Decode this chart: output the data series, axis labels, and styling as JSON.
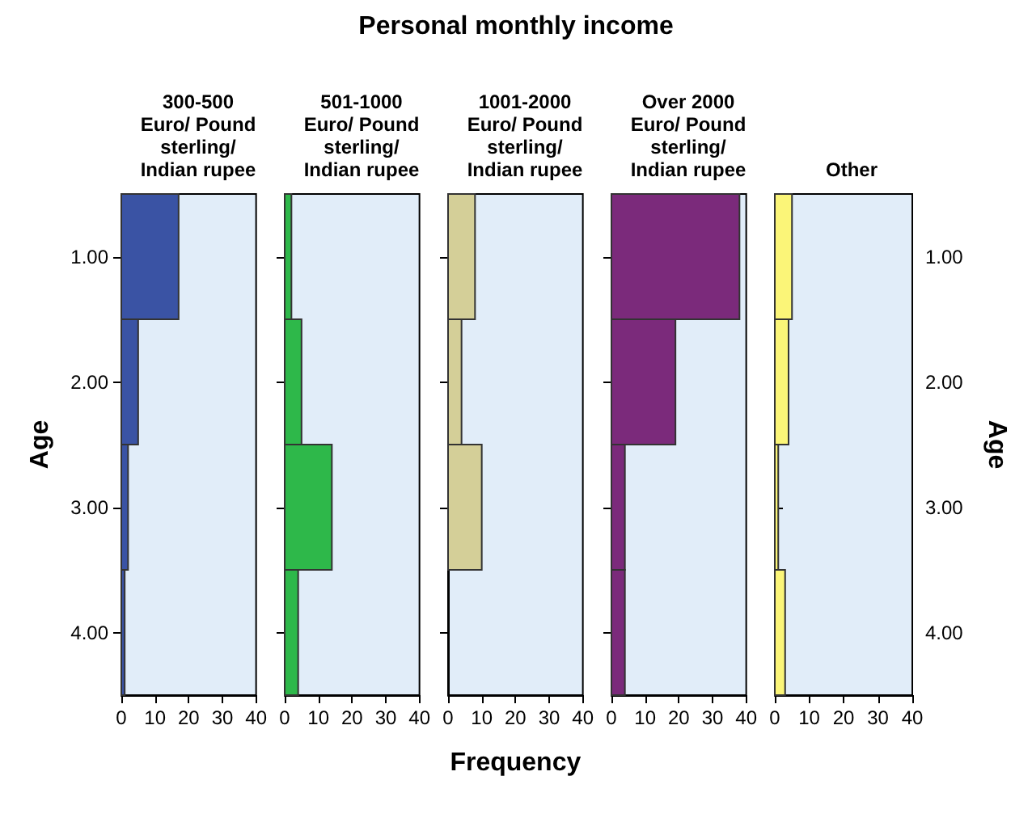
{
  "chart_data": [
    {
      "type": "histogram",
      "orientation": "horizontal",
      "title": "300-500\nEuro/ Pound\nsterling/\nIndian rupee",
      "ylabel": "Age",
      "bins": [
        0.5,
        1.5,
        2.5,
        3.5,
        4.5
      ],
      "values": [
        17,
        5,
        2,
        1
      ],
      "color": "#3a53a4",
      "xlim": [
        0,
        40
      ],
      "xticks": [
        0,
        10,
        20,
        30,
        40
      ],
      "ylim": [
        4.5,
        0.5
      ],
      "yticks": [
        {
          "value": 1,
          "label": "1.00"
        },
        {
          "value": 2,
          "label": "2.00"
        },
        {
          "value": 3,
          "label": "3.00"
        },
        {
          "value": 4,
          "label": "4.00"
        }
      ]
    },
    {
      "type": "histogram",
      "orientation": "horizontal",
      "title": "501-1000\nEuro/ Pound\nsterling/\nIndian rupee",
      "bins": [
        0.5,
        1.5,
        2.5,
        3.5,
        4.5
      ],
      "values": [
        2,
        5,
        14,
        4
      ],
      "color": "#2eb84a",
      "xlim": [
        0,
        40
      ],
      "xticks": [
        0,
        10,
        20,
        30,
        40
      ],
      "ylim": [
        4.5,
        0.5
      ],
      "yticks": [
        1,
        2,
        3,
        4
      ],
      "tick_labels": "x"
    },
    {
      "type": "histogram",
      "orientation": "horizontal",
      "title": "1001-2000\nEuro/ Pound\nsterling/\nIndian rupee",
      "xlabel": "Frequency",
      "annotations": [
        "Personal monthly income"
      ],
      "bins": [
        0.5,
        1.5,
        2.5,
        3.5,
        4.5
      ],
      "values": [
        8,
        4,
        10,
        0
      ],
      "color": "#d4cf98",
      "xlim": [
        0,
        40
      ],
      "xticks": [
        0,
        10,
        20,
        30,
        40
      ],
      "ylim": [
        4.5,
        0.5
      ],
      "yticks": [
        1,
        2,
        3,
        4
      ],
      "tick_labels": "x"
    },
    {
      "type": "histogram",
      "orientation": "horizontal",
      "title": "Over 2000\nEuro/ Pound\nsterling/\nIndian rupee",
      "bins": [
        0.5,
        1.5,
        2.5,
        3.5,
        4.5
      ],
      "values": [
        38,
        19,
        4,
        4
      ],
      "color": "#7b2a7b",
      "xlim": [
        0,
        40
      ],
      "xticks": [
        0,
        10,
        20,
        30,
        40
      ],
      "ylim": [
        4.5,
        0.5
      ],
      "yticks": [
        1,
        2,
        3,
        4
      ],
      "tick_labels": "x"
    },
    {
      "type": "histogram",
      "orientation": "horizontal",
      "title": "Other",
      "y2label": "Age",
      "bins": [
        0.5,
        1.5,
        2.5,
        3.5,
        4.5
      ],
      "values": [
        5,
        4,
        1,
        3
      ],
      "color": "#fbf578",
      "xlim": [
        0,
        40
      ],
      "xticks": [
        0,
        10,
        20,
        30,
        40
      ],
      "ylim": [
        4.5,
        0.5
      ],
      "yticks": [
        {
          "value": 1,
          "label": "1.00"
        },
        {
          "value": 2,
          "label": "2.00"
        },
        {
          "value": 3,
          "label": "3.00"
        },
        {
          "value": 4,
          "label": "4.00"
        }
      ]
    }
  ]
}
